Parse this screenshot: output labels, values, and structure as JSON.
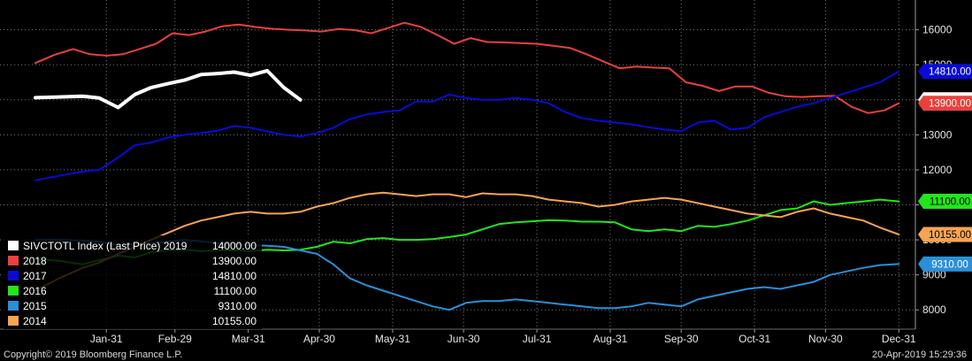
{
  "chart_data": {
    "type": "line",
    "title": "",
    "xlabel": "",
    "ylabel": "",
    "ylim": [
      7450,
      16850
    ],
    "yticks": [
      8000,
      9000,
      10000,
      11000,
      12000,
      13000,
      14000,
      15000,
      16000
    ],
    "xticks": [
      {
        "label": "Jan-31",
        "day": 30
      },
      {
        "label": "Feb-29",
        "day": 59
      },
      {
        "label": "Mar-31",
        "day": 90
      },
      {
        "label": "Apr-30",
        "day": 120
      },
      {
        "label": "May-31",
        "day": 151
      },
      {
        "label": "Jun-30",
        "day": 181
      },
      {
        "label": "Jul-31",
        "day": 212
      },
      {
        "label": "Aug-31",
        "day": 243
      },
      {
        "label": "Sep-30",
        "day": 273
      },
      {
        "label": "Oct-31",
        "day": 304
      },
      {
        "label": "Nov-30",
        "day": 334
      },
      {
        "label": "Dec-31",
        "day": 365
      }
    ],
    "grid": true,
    "legend_position": "bottom-left",
    "series": [
      {
        "name": "SIVCTOTL Index (Last Price) 2019",
        "last_value": "14000.00",
        "color": "#ffffff",
        "width": 4,
        "x": [
          0,
          10,
          20,
          27,
          35,
          42,
          49,
          56,
          63,
          70,
          77,
          84,
          91,
          98,
          105,
          112
        ],
        "values": [
          14060,
          14080,
          14100,
          14050,
          13780,
          14150,
          14350,
          14460,
          14560,
          14720,
          14750,
          14790,
          14700,
          14830,
          14350,
          14000
        ]
      },
      {
        "name": "2018",
        "last_value": "13900.00",
        "color": "#e8413c",
        "width": 2,
        "x": [
          0,
          8,
          16,
          23,
          30,
          37,
          44,
          51,
          58,
          65,
          72,
          79,
          86,
          93,
          100,
          107,
          114,
          121,
          128,
          135,
          142,
          149,
          156,
          163,
          170,
          177,
          184,
          191,
          198,
          205,
          212,
          219,
          226,
          233,
          240,
          247,
          254,
          261,
          268,
          275,
          282,
          289,
          296,
          303,
          310,
          317,
          324,
          331,
          338,
          345,
          352,
          359,
          365
        ],
        "values": [
          15050,
          15280,
          15450,
          15300,
          15260,
          15300,
          15450,
          15600,
          15900,
          15850,
          15950,
          16100,
          16150,
          16080,
          16030,
          16000,
          15980,
          15950,
          16020,
          15990,
          15900,
          16050,
          16200,
          16080,
          15850,
          15600,
          15760,
          15650,
          15640,
          15620,
          15600,
          15540,
          15480,
          15300,
          15100,
          14900,
          14950,
          14920,
          14900,
          14500,
          14400,
          14250,
          14380,
          14380,
          14200,
          14100,
          14080,
          14100,
          14110,
          13800,
          13620,
          13700,
          13900
        ]
      },
      {
        "name": "2017",
        "last_value": "14810.00",
        "color": "#0a0ad8",
        "width": 2,
        "x": [
          0,
          10,
          20,
          27,
          35,
          42,
          49,
          56,
          63,
          70,
          77,
          84,
          91,
          98,
          105,
          112,
          119,
          126,
          133,
          140,
          147,
          154,
          161,
          168,
          175,
          182,
          189,
          196,
          203,
          210,
          217,
          224,
          231,
          238,
          245,
          252,
          259,
          266,
          273,
          280,
          287,
          294,
          301,
          308,
          315,
          322,
          329,
          336,
          343,
          350,
          357,
          365
        ],
        "values": [
          11700,
          11830,
          11950,
          12000,
          12350,
          12700,
          12780,
          12920,
          13000,
          13050,
          13120,
          13250,
          13200,
          13100,
          13000,
          12950,
          13050,
          13200,
          13450,
          13580,
          13650,
          13700,
          13950,
          13950,
          14150,
          14050,
          14000,
          14000,
          14050,
          14000,
          13900,
          13650,
          13480,
          13400,
          13350,
          13300,
          13220,
          13150,
          13100,
          13350,
          13400,
          13150,
          13200,
          13500,
          13650,
          13800,
          13900,
          14050,
          14200,
          14350,
          14500,
          14810
        ]
      },
      {
        "name": "2016",
        "last_value": "11100.00",
        "color": "#22e61a",
        "width": 2,
        "x": [
          0,
          10,
          20,
          27,
          35,
          42,
          49,
          56,
          63,
          70,
          77,
          84,
          91,
          98,
          105,
          112,
          119,
          126,
          133,
          140,
          147,
          154,
          161,
          168,
          175,
          182,
          189,
          196,
          203,
          210,
          217,
          224,
          231,
          238,
          245,
          252,
          259,
          266,
          273,
          280,
          287,
          294,
          301,
          308,
          315,
          322,
          329,
          336,
          343,
          350,
          357,
          365
        ],
        "values": [
          9450,
          9400,
          9300,
          9420,
          9550,
          9500,
          9650,
          9700,
          9720,
          9680,
          9700,
          9700,
          9680,
          9720,
          9700,
          9720,
          9800,
          9950,
          9900,
          10020,
          10050,
          10000,
          10000,
          10020,
          10080,
          10150,
          10300,
          10450,
          10500,
          10530,
          10560,
          10550,
          10520,
          10520,
          10500,
          10300,
          10250,
          10300,
          10250,
          10400,
          10370,
          10450,
          10550,
          10700,
          10850,
          10900,
          11100,
          11000,
          11050,
          11100,
          11150,
          11100
        ]
      },
      {
        "name": "2015",
        "last_value": "9310.00",
        "color": "#2a8fd8",
        "width": 2,
        "x": [
          0,
          10,
          20,
          27,
          35,
          42,
          49,
          56,
          63,
          70,
          77,
          84,
          91,
          98,
          105,
          112,
          119,
          126,
          133,
          140,
          147,
          154,
          161,
          168,
          175,
          182,
          189,
          196,
          203,
          210,
          217,
          224,
          231,
          238,
          245,
          252,
          259,
          266,
          273,
          280,
          287,
          294,
          301,
          308,
          315,
          322,
          329,
          336,
          343,
          350,
          357,
          365
        ],
        "values": [
          10000,
          10000,
          9980,
          9950,
          9850,
          9880,
          9900,
          9950,
          10000,
          9960,
          9900,
          9880,
          9850,
          9830,
          9800,
          9700,
          9600,
          9300,
          8900,
          8700,
          8550,
          8400,
          8250,
          8100,
          8000,
          8200,
          8250,
          8250,
          8300,
          8250,
          8200,
          8150,
          8100,
          8050,
          8050,
          8100,
          8200,
          8150,
          8100,
          8300,
          8400,
          8500,
          8600,
          8650,
          8600,
          8700,
          8800,
          9000,
          9100,
          9200,
          9280,
          9310
        ]
      },
      {
        "name": "2014",
        "last_value": "10155.00",
        "color": "#f5a454",
        "width": 2,
        "x": [
          0,
          10,
          20,
          27,
          35,
          42,
          49,
          56,
          63,
          70,
          77,
          84,
          91,
          98,
          105,
          112,
          119,
          126,
          133,
          140,
          147,
          154,
          161,
          168,
          175,
          182,
          189,
          196,
          203,
          210,
          217,
          224,
          231,
          238,
          245,
          252,
          259,
          266,
          273,
          280,
          287,
          294,
          301,
          308,
          315,
          322,
          329,
          336,
          343,
          350,
          357,
          365
        ],
        "values": [
          8550,
          8900,
          9200,
          9350,
          9600,
          9800,
          10000,
          10200,
          10400,
          10550,
          10650,
          10750,
          10800,
          10750,
          10750,
          10800,
          10950,
          11050,
          11200,
          11300,
          11350,
          11300,
          11250,
          11300,
          11300,
          11220,
          11330,
          11300,
          11300,
          11250,
          11150,
          11100,
          11050,
          10950,
          11000,
          11100,
          11150,
          11200,
          11150,
          11050,
          10950,
          10850,
          10750,
          10700,
          10650,
          10800,
          10900,
          10750,
          10650,
          10550,
          10350,
          10155
        ]
      }
    ]
  },
  "footer": {
    "copyright": "Copyright© 2019 Bloomberg Finance L.P.",
    "timestamp": "20-Apr-2019 15:29:36"
  }
}
